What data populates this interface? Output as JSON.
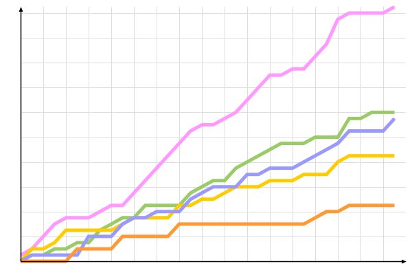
{
  "chart_data": {
    "type": "line",
    "title": "",
    "xlabel": "",
    "ylabel": "",
    "grid": true,
    "legend": "none",
    "x": [
      0,
      1,
      2,
      3,
      4,
      5,
      6,
      7,
      8,
      9,
      10,
      11,
      12,
      13,
      14,
      15,
      16,
      17,
      18,
      19,
      20,
      21,
      22,
      23,
      24,
      25,
      26,
      27,
      28,
      29,
      30,
      31,
      32,
      33
    ],
    "xlim": [
      0,
      34
    ],
    "ylim": [
      0,
      41
    ],
    "x_grid_step": 2,
    "y_grid_step": 4,
    "series": [
      {
        "color": "#ff99ff",
        "values": [
          1,
          2,
          4,
          6,
          7,
          7,
          7,
          8,
          9,
          9,
          11,
          13,
          15,
          17,
          19,
          21,
          22,
          22,
          23,
          24,
          26,
          28,
          30,
          30,
          31,
          31,
          33,
          35,
          39,
          40,
          40,
          40,
          40,
          41
        ]
      },
      {
        "color": "#99cc66",
        "values": [
          0,
          1,
          1,
          2,
          2,
          3,
          3,
          5,
          6,
          7,
          7,
          9,
          9,
          9,
          9,
          11,
          12,
          13,
          13,
          15,
          16,
          17,
          18,
          19,
          19,
          19,
          20,
          20,
          20,
          23,
          23,
          24,
          24,
          24
        ]
      },
      {
        "color": "#ffcc00",
        "values": [
          0,
          2,
          2,
          3,
          5,
          5,
          5,
          5,
          5,
          6,
          7,
          7,
          7,
          7,
          9,
          9,
          10,
          10,
          11,
          12,
          12,
          12,
          13,
          13,
          13,
          14,
          14,
          14,
          16,
          17,
          17,
          17,
          17,
          17
        ]
      },
      {
        "color": "#9999ff",
        "values": [
          0,
          1,
          1,
          1,
          1,
          1,
          4,
          4,
          4,
          6,
          7,
          7,
          8,
          8,
          8,
          10,
          11,
          12,
          12,
          12,
          14,
          14,
          15,
          15,
          15,
          16,
          17,
          18,
          19,
          21,
          21,
          21,
          21,
          23
        ]
      },
      {
        "color": "#ff9933",
        "values": [
          0,
          0,
          0,
          0,
          0,
          2,
          2,
          2,
          2,
          4,
          4,
          4,
          4,
          4,
          6,
          6,
          6,
          6,
          6,
          6,
          6,
          6,
          6,
          6,
          6,
          6,
          7,
          8,
          8,
          9,
          9,
          9,
          9,
          9
        ]
      }
    ],
    "colors": {
      "grid": "#dddddd",
      "axis": "#000000"
    }
  }
}
